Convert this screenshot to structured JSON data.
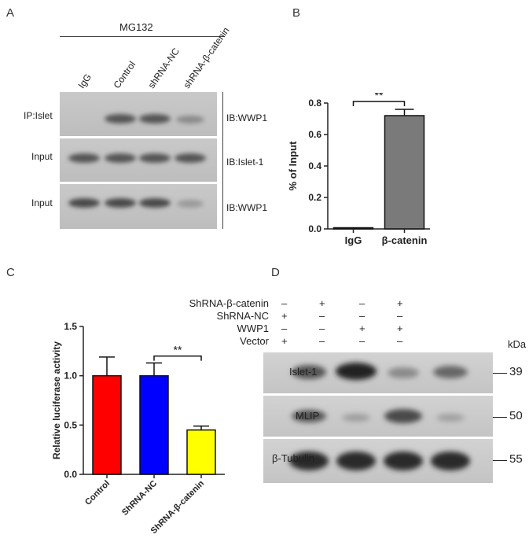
{
  "panels": {
    "a": "A",
    "b": "B",
    "c": "C",
    "d": "D"
  },
  "panel_a": {
    "treatment": "MG132",
    "lanes": [
      "IgG",
      "Control",
      "shRNA-NC",
      "shRNA-β-catenin"
    ],
    "rows": [
      {
        "left": "IP:Islet",
        "right": "IB:WWP1"
      },
      {
        "left": "Input",
        "right": "IB:Islet-1"
      },
      {
        "left": "Input",
        "right": "IB:WWP1"
      }
    ]
  },
  "panel_d": {
    "conditions": [
      {
        "label": "ShRNA-β-catenin",
        "marks": [
          "–",
          "+",
          "–",
          "+"
        ]
      },
      {
        "label": "ShRNA-NC",
        "marks": [
          "+",
          "–",
          "–",
          "–"
        ]
      },
      {
        "label": "WWP1",
        "marks": [
          "–",
          "–",
          "+",
          "+"
        ]
      },
      {
        "label": "Vector",
        "marks": [
          "+",
          "–",
          "–",
          "–"
        ]
      }
    ],
    "kda_label": "kDa",
    "blots": [
      {
        "label": "Islet-1",
        "kda": "39"
      },
      {
        "label": "MLIP",
        "kda": "50"
      },
      {
        "label": "β-Tubulin",
        "kda": "55"
      }
    ]
  },
  "chart_data": [
    {
      "type": "bar",
      "categories": [
        "IgG",
        "β-catenin"
      ],
      "values": [
        0.0,
        0.72
      ],
      "errors": [
        0.0,
        0.04
      ],
      "ylabel": "% of Input",
      "ylim": [
        0,
        0.8
      ],
      "yticks": [
        "0.0",
        "0.2",
        "0.4",
        "0.6",
        "0.8"
      ],
      "significance": "**",
      "colors": [
        "#7a7a7a",
        "#7a7a7a"
      ]
    },
    {
      "type": "bar",
      "categories": [
        "Control",
        "ShRNA-NC",
        "ShRNA-β-catenin"
      ],
      "values": [
        1.0,
        1.0,
        0.45
      ],
      "errors": [
        0.19,
        0.13,
        0.04
      ],
      "ylabel": "Relative luciferase activity",
      "ylim": [
        0,
        1.5
      ],
      "yticks": [
        "0.0",
        "0.5",
        "1.0",
        "1.5"
      ],
      "significance": "**",
      "colors": [
        "#ff0000",
        "#0000ff",
        "#ffff00"
      ]
    }
  ]
}
